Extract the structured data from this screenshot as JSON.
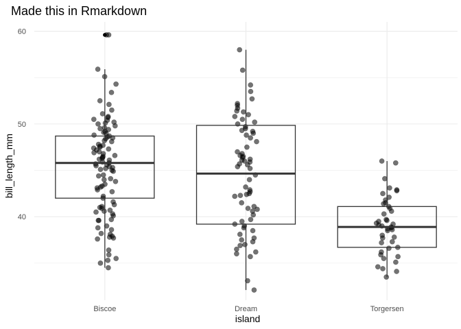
{
  "chart_data": {
    "type": "boxplot",
    "title": "Made this in Rmarkdown",
    "xlabel": "island",
    "ylabel": "bill_length_mm",
    "categories": [
      "Biscoe",
      "Dream",
      "Torgersen"
    ],
    "ylim": [
      31,
      61
    ],
    "yticks": [
      40,
      50,
      60
    ],
    "grid": true,
    "boxes": [
      {
        "category": "Biscoe",
        "whisker_low": 34.5,
        "q1": 42.0,
        "median": 45.8,
        "q3": 48.7,
        "whisker_high": 55.9,
        "outliers": [
          59.6
        ]
      },
      {
        "category": "Dream",
        "whisker_low": 32.1,
        "q1": 39.2,
        "median": 44.65,
        "q3": 49.85,
        "whisker_high": 58.0,
        "outliers": []
      },
      {
        "category": "Torgersen",
        "whisker_low": 33.5,
        "q1": 36.7,
        "median": 38.9,
        "q3": 41.1,
        "whisker_high": 46.0,
        "outliers": []
      }
    ],
    "points": {
      "Biscoe": [
        34.5,
        35.0,
        35.3,
        35.5,
        35.9,
        36.4,
        37.6,
        37.7,
        37.8,
        37.9,
        38.1,
        38.2,
        38.6,
        38.8,
        39.0,
        39.6,
        39.6,
        39.7,
        40.1,
        40.3,
        40.5,
        40.6,
        40.7,
        40.9,
        41.0,
        41.1,
        41.3,
        41.6,
        42.0,
        42.2,
        42.7,
        42.9,
        43.1,
        43.2,
        43.3,
        43.5,
        43.8,
        44.0,
        44.1,
        44.4,
        44.5,
        44.9,
        45.0,
        45.1,
        45.2,
        45.3,
        45.4,
        45.5,
        45.6,
        45.7,
        45.8,
        45.9,
        46.1,
        46.2,
        46.3,
        46.4,
        46.5,
        46.6,
        46.8,
        46.9,
        47.0,
        47.2,
        47.3,
        47.4,
        47.5,
        47.6,
        47.7,
        47.8,
        48.1,
        48.2,
        48.4,
        48.5,
        48.6,
        48.7,
        48.8,
        49.0,
        49.1,
        49.2,
        49.4,
        49.5,
        49.6,
        49.8,
        50.0,
        50.1,
        50.2,
        50.4,
        50.5,
        50.7,
        50.8,
        51.1,
        51.5,
        52.1,
        52.5,
        53.4,
        54.3,
        55.1,
        55.9,
        59.6,
        59.6
      ],
      "Dream": [
        32.1,
        33.1,
        35.7,
        36.0,
        36.2,
        36.5,
        36.9,
        37.0,
        37.3,
        37.5,
        37.7,
        38.1,
        38.5,
        38.8,
        39.0,
        39.2,
        39.5,
        39.7,
        40.2,
        40.6,
        40.8,
        40.9,
        41.1,
        41.5,
        42.2,
        42.3,
        42.4,
        42.5,
        42.7,
        42.9,
        43.2,
        44.0,
        44.5,
        45.2,
        45.4,
        45.6,
        45.7,
        45.9,
        46.0,
        46.1,
        46.2,
        46.4,
        46.5,
        46.6,
        46.8,
        47.0,
        47.5,
        48.1,
        48.5,
        48.8,
        49.0,
        49.2,
        49.3,
        49.5,
        49.7,
        50.0,
        50.2,
        50.5,
        50.8,
        51.0,
        51.3,
        51.4,
        51.7,
        52.0,
        52.2,
        52.7,
        53.5,
        54.2,
        55.8,
        58.0
      ],
      "Torgersen": [
        33.5,
        34.1,
        34.4,
        34.6,
        35.1,
        35.5,
        35.7,
        35.9,
        36.2,
        36.6,
        36.7,
        37.2,
        37.3,
        37.7,
        37.8,
        38.0,
        38.5,
        38.6,
        38.7,
        38.8,
        38.9,
        39.0,
        39.1,
        39.2,
        39.3,
        39.5,
        39.6,
        39.7,
        40.3,
        40.6,
        40.9,
        41.1,
        41.4,
        41.5,
        41.8,
        42.1,
        42.5,
        42.8,
        42.9,
        43.1,
        44.1,
        45.8,
        46.0
      ]
    }
  }
}
